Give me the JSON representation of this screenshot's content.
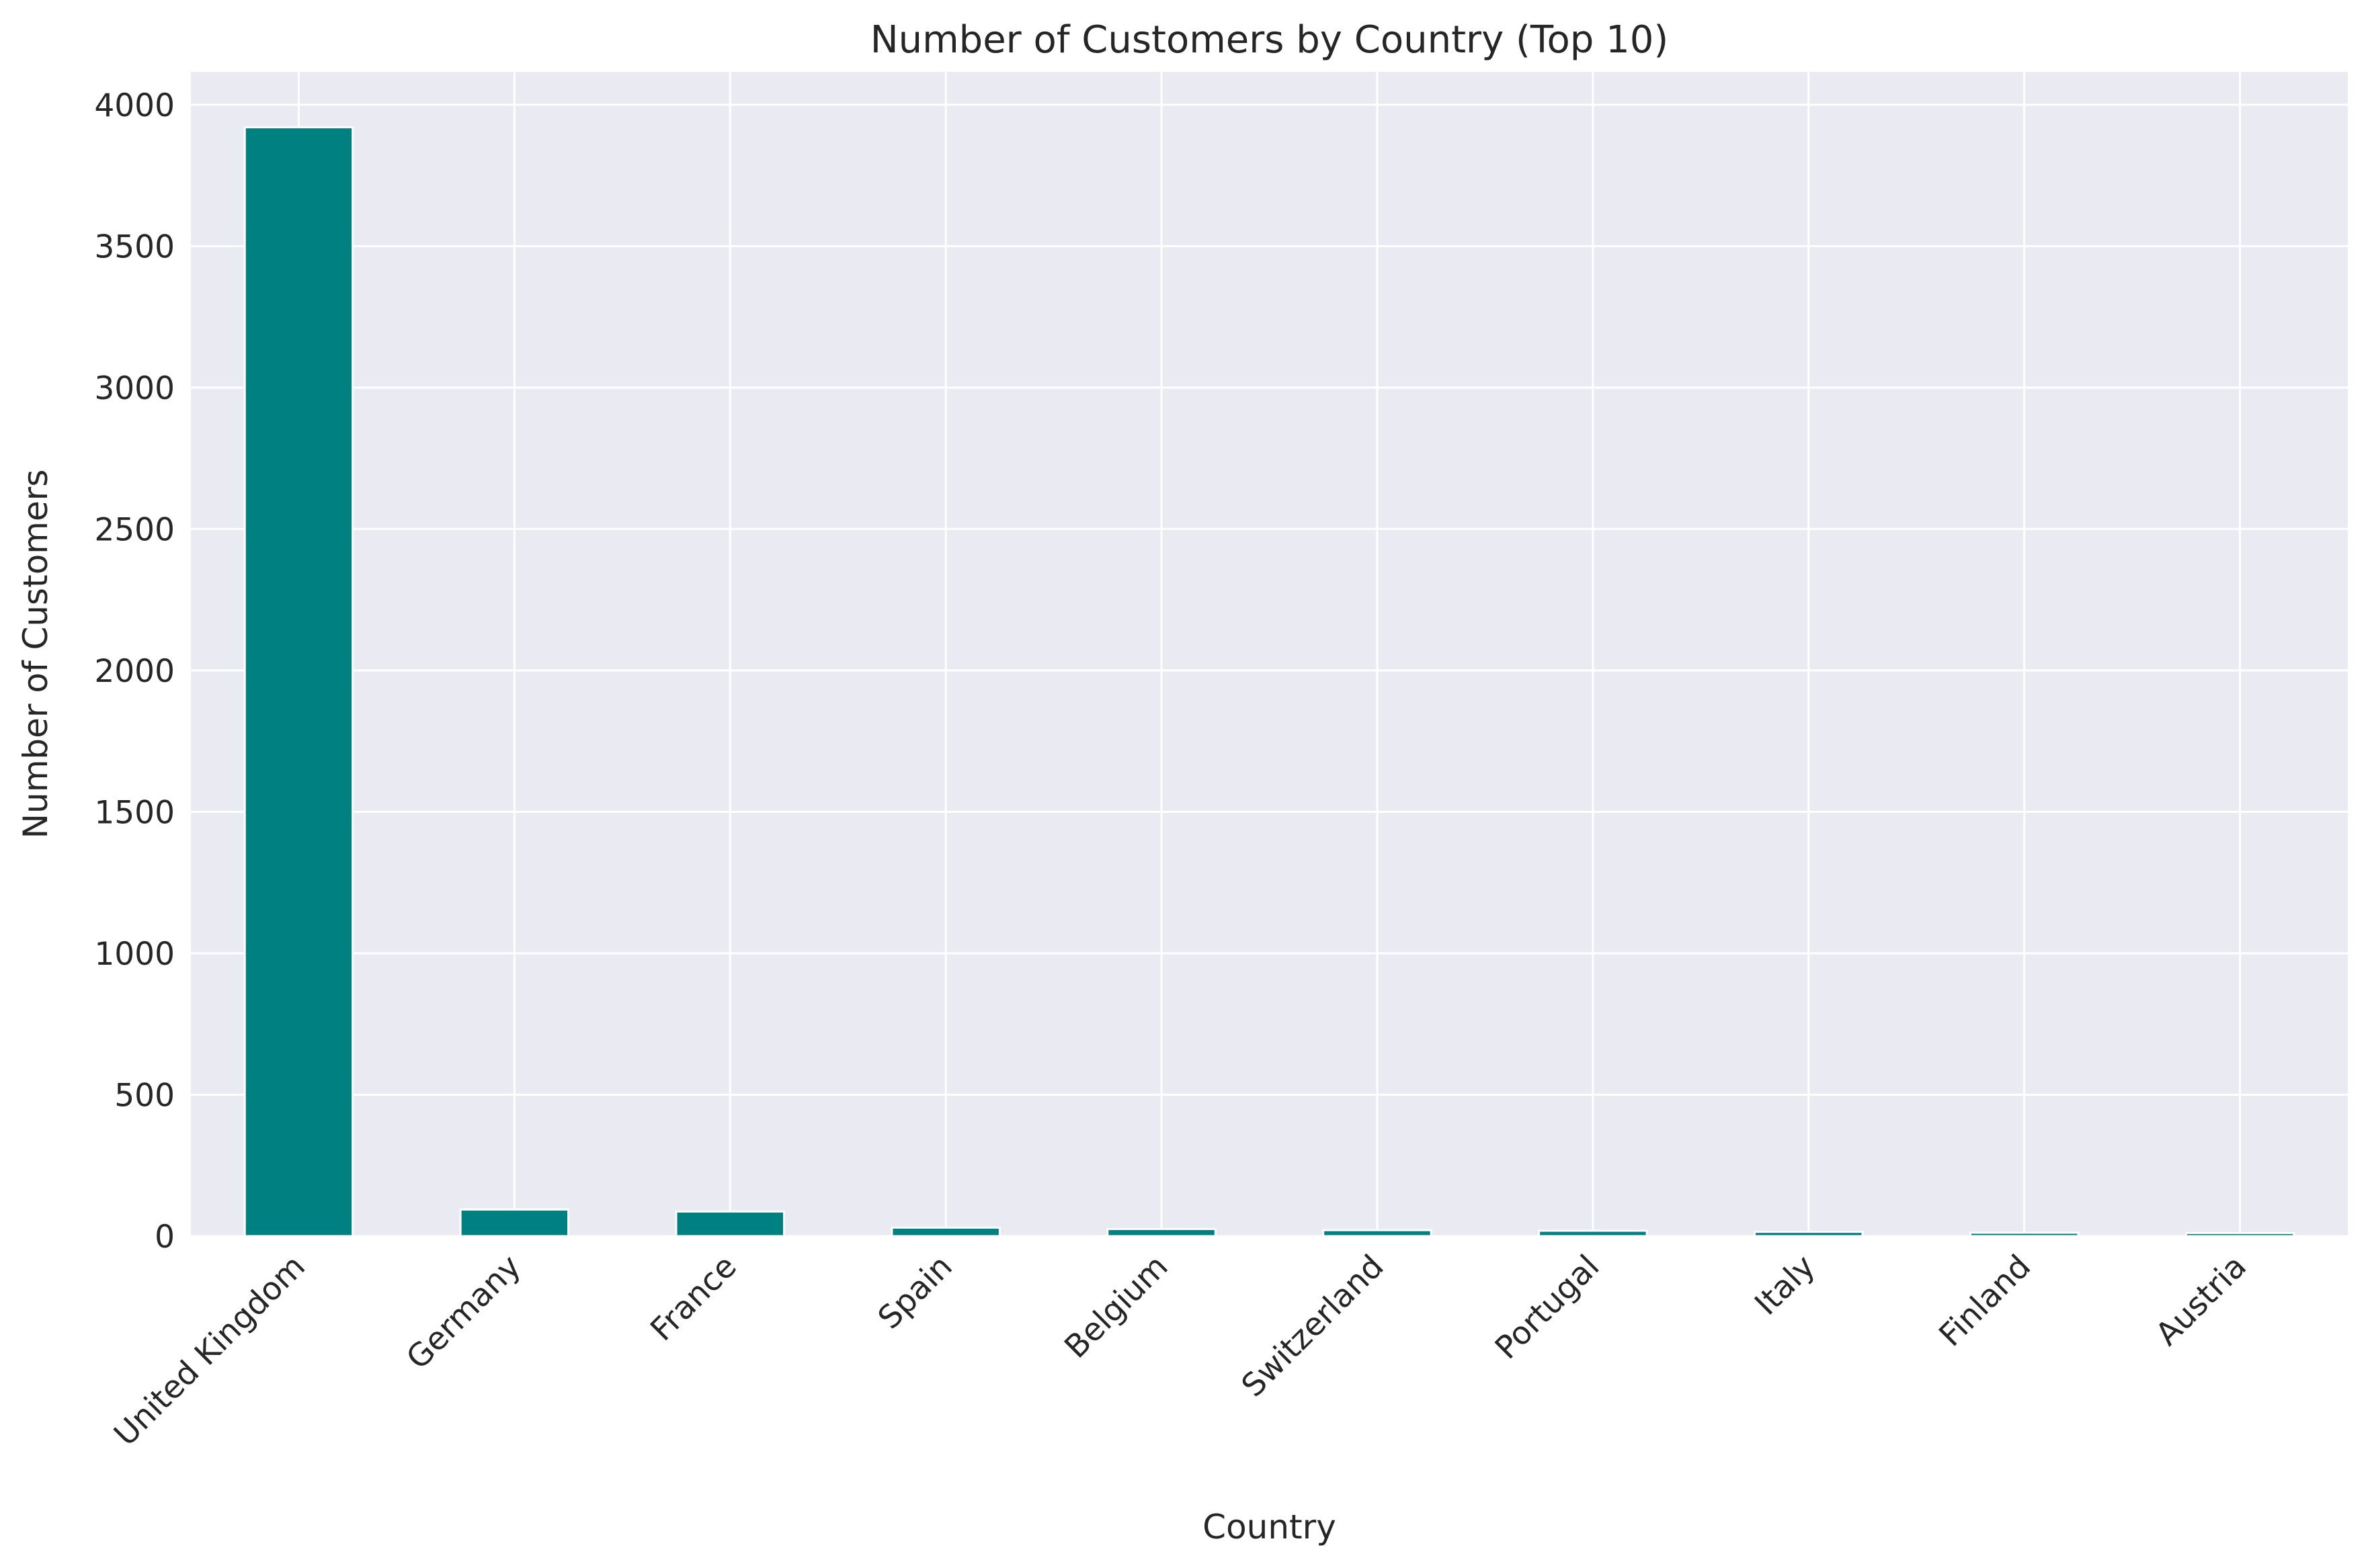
{
  "chart_data": {
    "type": "bar",
    "title": "Number of Customers by Country (Top 10)",
    "xlabel": "Country",
    "ylabel": "Number of Customers",
    "categories": [
      "United Kingdom",
      "Germany",
      "France",
      "Spain",
      "Belgium",
      "Switzerland",
      "Portugal",
      "Italy",
      "Finland",
      "Austria"
    ],
    "values": [
      3920,
      94,
      87,
      30,
      25,
      21,
      19,
      15,
      12,
      11
    ],
    "ylim": [
      0,
      4116
    ],
    "yticks": [
      0,
      500,
      1000,
      1500,
      2000,
      2500,
      3000,
      3500,
      4000
    ],
    "grid": true,
    "tick_rotation_deg": 45,
    "colors": {
      "bar": "#008080",
      "plot_background": "#EAEAF2",
      "grid": "#FFFFFF",
      "text": "#262626"
    }
  }
}
